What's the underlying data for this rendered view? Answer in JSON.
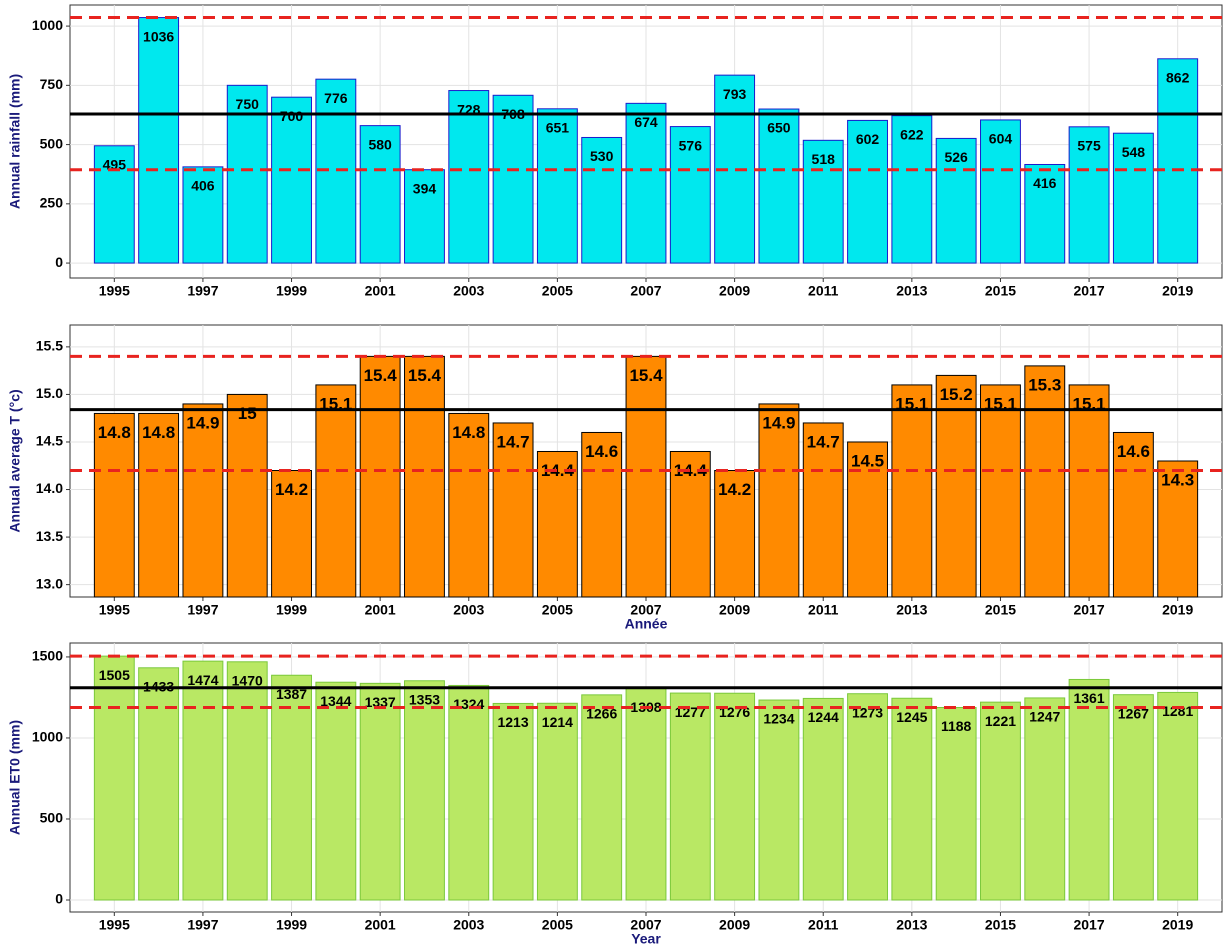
{
  "chart_data": [
    {
      "type": "bar",
      "y_label": "Annual rainfall (mm)",
      "x": [
        1995,
        1996,
        1997,
        1998,
        1999,
        2000,
        2001,
        2002,
        2003,
        2004,
        2005,
        2006,
        2007,
        2008,
        2009,
        2010,
        2011,
        2012,
        2013,
        2014,
        2015,
        2016,
        2017,
        2018,
        2019
      ],
      "values": [
        495,
        1036,
        406,
        750,
        700,
        776,
        580,
        394,
        728,
        708,
        651,
        530,
        674,
        576,
        793,
        650,
        518,
        602,
        622,
        526,
        604,
        416,
        575,
        548,
        862
      ],
      "color": "#00e8ee",
      "edge_color": "#1a1acc",
      "xlim": [
        1994,
        2020
      ],
      "xticks": [
        1995,
        1997,
        1999,
        2001,
        2003,
        2005,
        2007,
        2009,
        2011,
        2013,
        2015,
        2017,
        2019
      ],
      "ylim": [
        -63,
        1089
      ],
      "yticks": [
        0,
        250,
        500,
        750,
        1000
      ],
      "grid": true,
      "reference_lines": [
        {
          "value": 629,
          "style": "solid",
          "color": "#000000"
        },
        {
          "value": 1036,
          "style": "dashed",
          "color": "#e8231f"
        },
        {
          "value": 394,
          "style": "dashed",
          "color": "#e8231f"
        }
      ]
    },
    {
      "type": "bar",
      "y_label": "Annual average T (°c)",
      "x_label": "Année",
      "x": [
        1995,
        1996,
        1997,
        1998,
        1999,
        2000,
        2001,
        2002,
        2003,
        2004,
        2005,
        2006,
        2007,
        2008,
        2009,
        2010,
        2011,
        2012,
        2013,
        2014,
        2015,
        2016,
        2017,
        2018,
        2019
      ],
      "values": [
        14.8,
        14.8,
        14.9,
        15,
        14.2,
        15.1,
        15.4,
        15.4,
        14.8,
        14.7,
        14.4,
        14.6,
        15.4,
        14.4,
        14.2,
        14.9,
        14.7,
        14.5,
        15.1,
        15.2,
        15.1,
        15.3,
        15.1,
        14.6,
        14.3
      ],
      "color": "#ff8a00",
      "edge_color": "#000000",
      "xlim": [
        1994,
        2020
      ],
      "xticks": [
        1995,
        1997,
        1999,
        2001,
        2003,
        2005,
        2007,
        2009,
        2011,
        2013,
        2015,
        2017,
        2019
      ],
      "ylim": [
        12.87,
        15.73
      ],
      "yticks": [
        {
          "value": 13,
          "label": "13.0"
        },
        13.5,
        {
          "value": 14,
          "label": "14.0"
        },
        14.5,
        {
          "value": 15,
          "label": "15.0"
        },
        15.5
      ],
      "grid": true,
      "reference_lines": [
        {
          "value": 14.84,
          "style": "solid",
          "color": "#000000"
        },
        {
          "value": 15.4,
          "style": "dashed",
          "color": "#e8231f"
        },
        {
          "value": 14.2,
          "style": "dashed",
          "color": "#e8231f"
        }
      ]
    },
    {
      "type": "bar",
      "y_label": "Annual ET0 (mm)",
      "x_label": "Year",
      "x": [
        1995,
        1996,
        1997,
        1998,
        1999,
        2000,
        2001,
        2002,
        2003,
        2004,
        2005,
        2006,
        2007,
        2008,
        2009,
        2010,
        2011,
        2012,
        2013,
        2014,
        2015,
        2016,
        2017,
        2018,
        2019
      ],
      "values": [
        1505,
        1433,
        1474,
        1470,
        1387,
        1344,
        1337,
        1353,
        1324,
        1213,
        1214,
        1266,
        1308,
        1277,
        1276,
        1234,
        1244,
        1273,
        1245,
        1188,
        1221,
        1247,
        1361,
        1267,
        1281
      ],
      "color": "#b9e864",
      "edge_color": "#7ac83a",
      "xlim": [
        1994,
        2020
      ],
      "xticks": [
        1995,
        1997,
        1999,
        2001,
        2003,
        2005,
        2007,
        2009,
        2011,
        2013,
        2015,
        2017,
        2019
      ],
      "ylim": [
        -74,
        1586
      ],
      "yticks": [
        0,
        500,
        1000,
        1500
      ],
      "grid": true,
      "reference_lines": [
        {
          "value": 1310,
          "style": "solid",
          "color": "#000000"
        },
        {
          "value": 1505,
          "style": "dashed",
          "color": "#e8231f"
        },
        {
          "value": 1188,
          "style": "dashed",
          "color": "#e8231f"
        }
      ]
    }
  ]
}
